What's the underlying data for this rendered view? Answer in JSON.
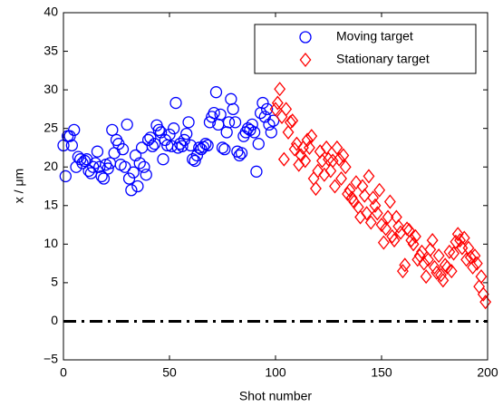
{
  "chart_data": {
    "type": "scatter",
    "xlabel": "Shot number",
    "ylabel": "x / μm",
    "xlim": [
      0,
      200
    ],
    "ylim": [
      -5,
      40
    ],
    "xticks": [
      0,
      50,
      100,
      150,
      200
    ],
    "yticks": [
      {
        "value": -5,
        "label": "−5"
      },
      0,
      5,
      10,
      15,
      20,
      25,
      30,
      35,
      40
    ],
    "hline": 0,
    "legend": "upper right",
    "series": [
      {
        "name": "Moving target",
        "color": "#0000ff",
        "marker": "circle",
        "x": [
          0,
          1,
          2,
          3,
          4,
          5,
          6,
          7,
          8,
          9,
          10,
          11,
          12,
          13,
          14,
          15,
          16,
          17,
          18,
          19,
          20,
          21,
          22,
          23,
          24,
          25,
          26,
          27,
          28,
          29,
          30,
          31,
          32,
          33,
          34,
          35,
          36,
          37,
          38,
          39,
          40,
          41,
          42,
          43,
          44,
          45,
          46,
          47,
          48,
          49,
          50,
          51,
          52,
          53,
          54,
          55,
          56,
          57,
          58,
          59,
          60,
          61,
          62,
          63,
          64,
          65,
          66,
          67,
          68,
          69,
          70,
          71,
          72,
          73,
          74,
          75,
          76,
          77,
          78,
          79,
          80,
          81,
          82,
          83,
          84,
          85,
          86,
          87,
          88,
          89,
          90,
          91,
          92,
          93,
          94,
          95,
          96,
          97,
          98,
          99
        ],
        "values": [
          22.8,
          18.8,
          24,
          24,
          22.8,
          24.8,
          20,
          21.3,
          21,
          20.5,
          20.8,
          21,
          19.5,
          19.2,
          20,
          20.5,
          22,
          20,
          18.8,
          18.5,
          20.3,
          19.8,
          20.5,
          24.8,
          21.8,
          23.5,
          23,
          20.3,
          22.3,
          20,
          25.5,
          18.5,
          17,
          19.3,
          21.5,
          17.5,
          20.5,
          22.5,
          20,
          19,
          23.5,
          23.8,
          22.7,
          23,
          25.4,
          24.8,
          24.5,
          21,
          23.5,
          22.8,
          24.2,
          22.7,
          25,
          28.3,
          22.5,
          23,
          22.7,
          23.5,
          24.3,
          25.8,
          22.8,
          21,
          20.8,
          21.5,
          22.5,
          22.3,
          22.6,
          23,
          22.8,
          25.8,
          26.5,
          27,
          29.7,
          25.5,
          26.8,
          22.5,
          22.3,
          24.5,
          25.8,
          28.8,
          27.5,
          25.8,
          22,
          21.5,
          21.8,
          24,
          24.5,
          25,
          24.8,
          25.5,
          24.5,
          19.4,
          23,
          27,
          28.3,
          26.5,
          27.5,
          25.5,
          24.5,
          26
        ]
      },
      {
        "name": "Stationary target",
        "color": "#ff0000",
        "marker": "diamond",
        "x": [
          100,
          101,
          102,
          103,
          104,
          105,
          106,
          107,
          108,
          109,
          110,
          111,
          112,
          113,
          114,
          115,
          116,
          117,
          118,
          119,
          120,
          121,
          122,
          123,
          124,
          125,
          126,
          127,
          128,
          129,
          130,
          131,
          132,
          133,
          134,
          135,
          136,
          137,
          138,
          139,
          140,
          141,
          142,
          143,
          144,
          145,
          146,
          147,
          148,
          149,
          150,
          151,
          152,
          153,
          154,
          155,
          156,
          157,
          158,
          159,
          160,
          161,
          162,
          163,
          164,
          165,
          166,
          167,
          168,
          169,
          170,
          171,
          172,
          173,
          174,
          175,
          176,
          177,
          178,
          179,
          180,
          181,
          182,
          183,
          184,
          185,
          186,
          187,
          188,
          189,
          190,
          191,
          192,
          193,
          194,
          195,
          196,
          197,
          198,
          199
        ],
        "values": [
          27.5,
          28.3,
          30.1,
          26.5,
          21,
          27.5,
          24.5,
          25.8,
          26,
          22.3,
          23,
          20.3,
          21.5,
          22.5,
          20.8,
          23.5,
          22.5,
          24,
          18.5,
          17.2,
          19.5,
          22,
          20.8,
          19,
          22.5,
          21,
          19.5,
          20.8,
          17.5,
          22.5,
          21,
          18.5,
          21.5,
          20,
          16.5,
          17,
          16,
          15.5,
          18,
          14.8,
          13.5,
          17.5,
          16.3,
          14,
          18.8,
          12.8,
          16,
          15,
          14,
          17,
          12.5,
          10.2,
          12,
          13.5,
          15.5,
          11,
          10.5,
          13.5,
          12.3,
          11.5,
          6.5,
          7.3,
          12,
          11.8,
          10.5,
          10,
          11,
          8,
          8.5,
          9,
          7.5,
          5.8,
          8,
          9.3,
          10.5,
          7,
          6.3,
          8.5,
          6,
          5.3,
          7.3,
          7,
          9,
          6.5,
          8.8,
          10.3,
          11.3,
          10.5,
          9.5,
          10.8,
          8,
          9.5,
          8.3,
          7,
          8.5,
          7.5,
          4.5,
          5.8,
          3.5,
          2.5
        ]
      }
    ]
  }
}
